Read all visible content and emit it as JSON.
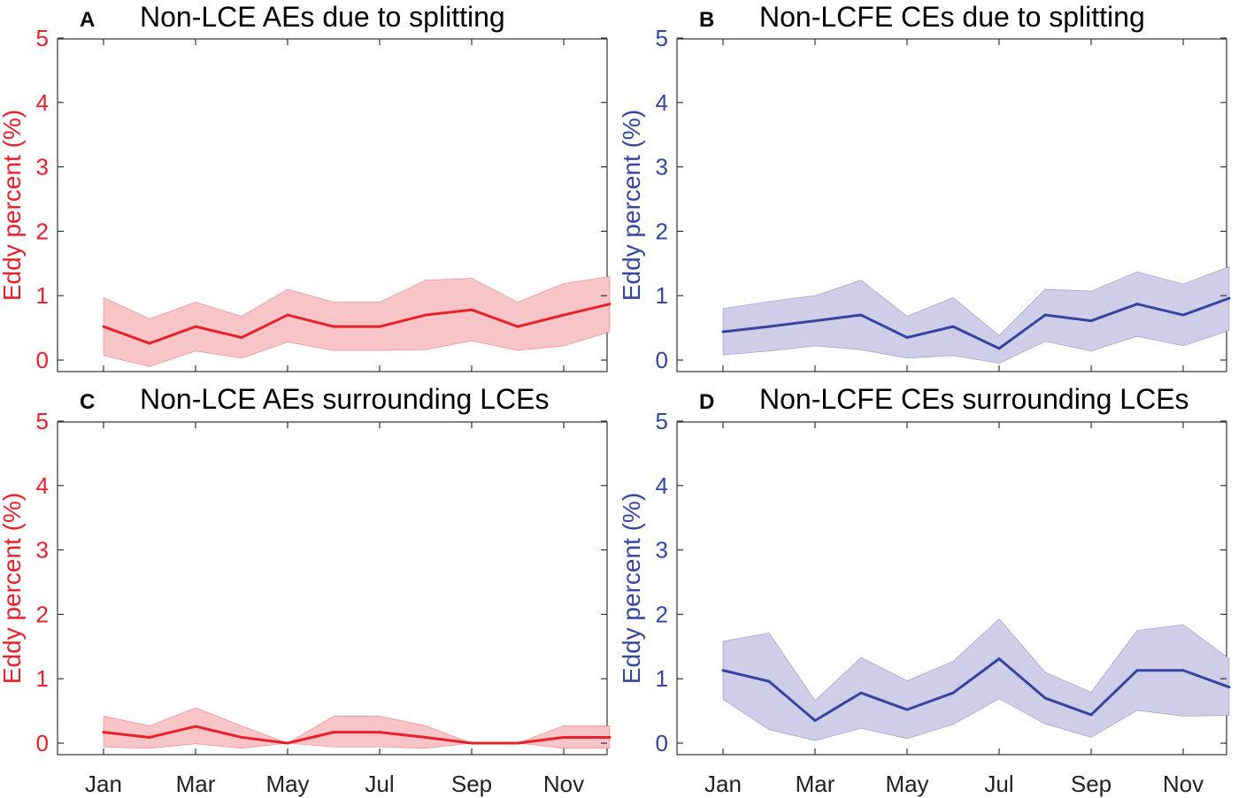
{
  "figure": {
    "months": [
      "Jan",
      "Feb",
      "Mar",
      "Apr",
      "May",
      "Jun",
      "Jul",
      "Aug",
      "Sep",
      "Oct",
      "Nov",
      "Dec"
    ],
    "x_tick_labels": [
      "Jan",
      "Mar",
      "May",
      "Jul",
      "Sep",
      "Nov"
    ],
    "y_ticks": [
      "0",
      "1",
      "2",
      "3",
      "4",
      "5"
    ],
    "ylabel": "Eddy percent (%)",
    "colors": {
      "red": "#e8202a",
      "red_fill": "#f7c5c7",
      "blue": "#3545a0",
      "blue_fill": "#cfcde8"
    }
  },
  "chart_data": [
    {
      "panel": "A",
      "type": "line",
      "title": "Non-LCE AEs due to splitting",
      "ylabel": "Eddy percent (%)",
      "ylim": [
        0,
        5
      ],
      "color": "red",
      "x": [
        "Jan",
        "Feb",
        "Mar",
        "Apr",
        "May",
        "Jun",
        "Jul",
        "Aug",
        "Sep",
        "Oct",
        "Nov",
        "Dec"
      ],
      "values": [
        0.52,
        0.26,
        0.52,
        0.35,
        0.7,
        0.52,
        0.52,
        0.7,
        0.78,
        0.52,
        0.7,
        0.87
      ],
      "upper": [
        0.97,
        0.64,
        0.9,
        0.68,
        1.1,
        0.9,
        0.9,
        1.24,
        1.27,
        0.9,
        1.19,
        1.3
      ],
      "lower": [
        0.07,
        -0.1,
        0.14,
        0.03,
        0.28,
        0.15,
        0.15,
        0.16,
        0.3,
        0.15,
        0.22,
        0.44
      ]
    },
    {
      "panel": "B",
      "type": "line",
      "title": "Non-LCFE CEs due to splitting",
      "ylabel": "Eddy percent (%)",
      "ylim": [
        0,
        5
      ],
      "color": "blue",
      "x": [
        "Jan",
        "Feb",
        "Mar",
        "Apr",
        "May",
        "Jun",
        "Jul",
        "Aug",
        "Sep",
        "Oct",
        "Nov",
        "Dec"
      ],
      "values": [
        0.44,
        0.52,
        0.61,
        0.7,
        0.35,
        0.52,
        0.18,
        0.7,
        0.61,
        0.87,
        0.7,
        0.96
      ],
      "upper": [
        0.8,
        0.91,
        1.0,
        1.24,
        0.68,
        0.97,
        0.38,
        1.1,
        1.07,
        1.37,
        1.18,
        1.45
      ],
      "lower": [
        0.08,
        0.14,
        0.22,
        0.16,
        0.03,
        0.07,
        -0.05,
        0.29,
        0.14,
        0.37,
        0.22,
        0.46
      ]
    },
    {
      "panel": "C",
      "type": "line",
      "title": "Non-LCE AEs surrounding LCEs",
      "ylabel": "Eddy percent (%)",
      "ylim": [
        0,
        5
      ],
      "color": "red",
      "x": [
        "Jan",
        "Feb",
        "Mar",
        "Apr",
        "May",
        "Jun",
        "Jul",
        "Aug",
        "Sep",
        "Oct",
        "Nov",
        "Dec"
      ],
      "values": [
        0.17,
        0.09,
        0.26,
        0.09,
        0.0,
        0.17,
        0.17,
        0.09,
        0.0,
        0.0,
        0.09,
        0.09
      ],
      "upper": [
        0.42,
        0.27,
        0.55,
        0.27,
        0.0,
        0.42,
        0.42,
        0.27,
        0.0,
        0.0,
        0.27,
        0.27
      ],
      "lower": [
        -0.06,
        -0.08,
        -0.01,
        -0.08,
        0.0,
        -0.06,
        -0.06,
        -0.08,
        0.0,
        0.0,
        -0.08,
        -0.08
      ]
    },
    {
      "panel": "D",
      "type": "line",
      "title": "Non-LCFE CEs surrounding LCEs",
      "ylabel": "Eddy percent (%)",
      "ylim": [
        0,
        5
      ],
      "color": "blue",
      "x": [
        "Jan",
        "Feb",
        "Mar",
        "Apr",
        "May",
        "Jun",
        "Jul",
        "Aug",
        "Sep",
        "Oct",
        "Nov",
        "Dec"
      ],
      "values": [
        1.13,
        0.96,
        0.35,
        0.78,
        0.52,
        0.78,
        1.31,
        0.7,
        0.44,
        1.13,
        1.13,
        0.87
      ],
      "upper": [
        1.58,
        1.71,
        0.66,
        1.33,
        0.97,
        1.27,
        1.93,
        1.1,
        0.79,
        1.75,
        1.84,
        1.31
      ],
      "lower": [
        0.68,
        0.21,
        0.04,
        0.23,
        0.07,
        0.29,
        0.69,
        0.3,
        0.09,
        0.51,
        0.42,
        0.43
      ]
    }
  ]
}
